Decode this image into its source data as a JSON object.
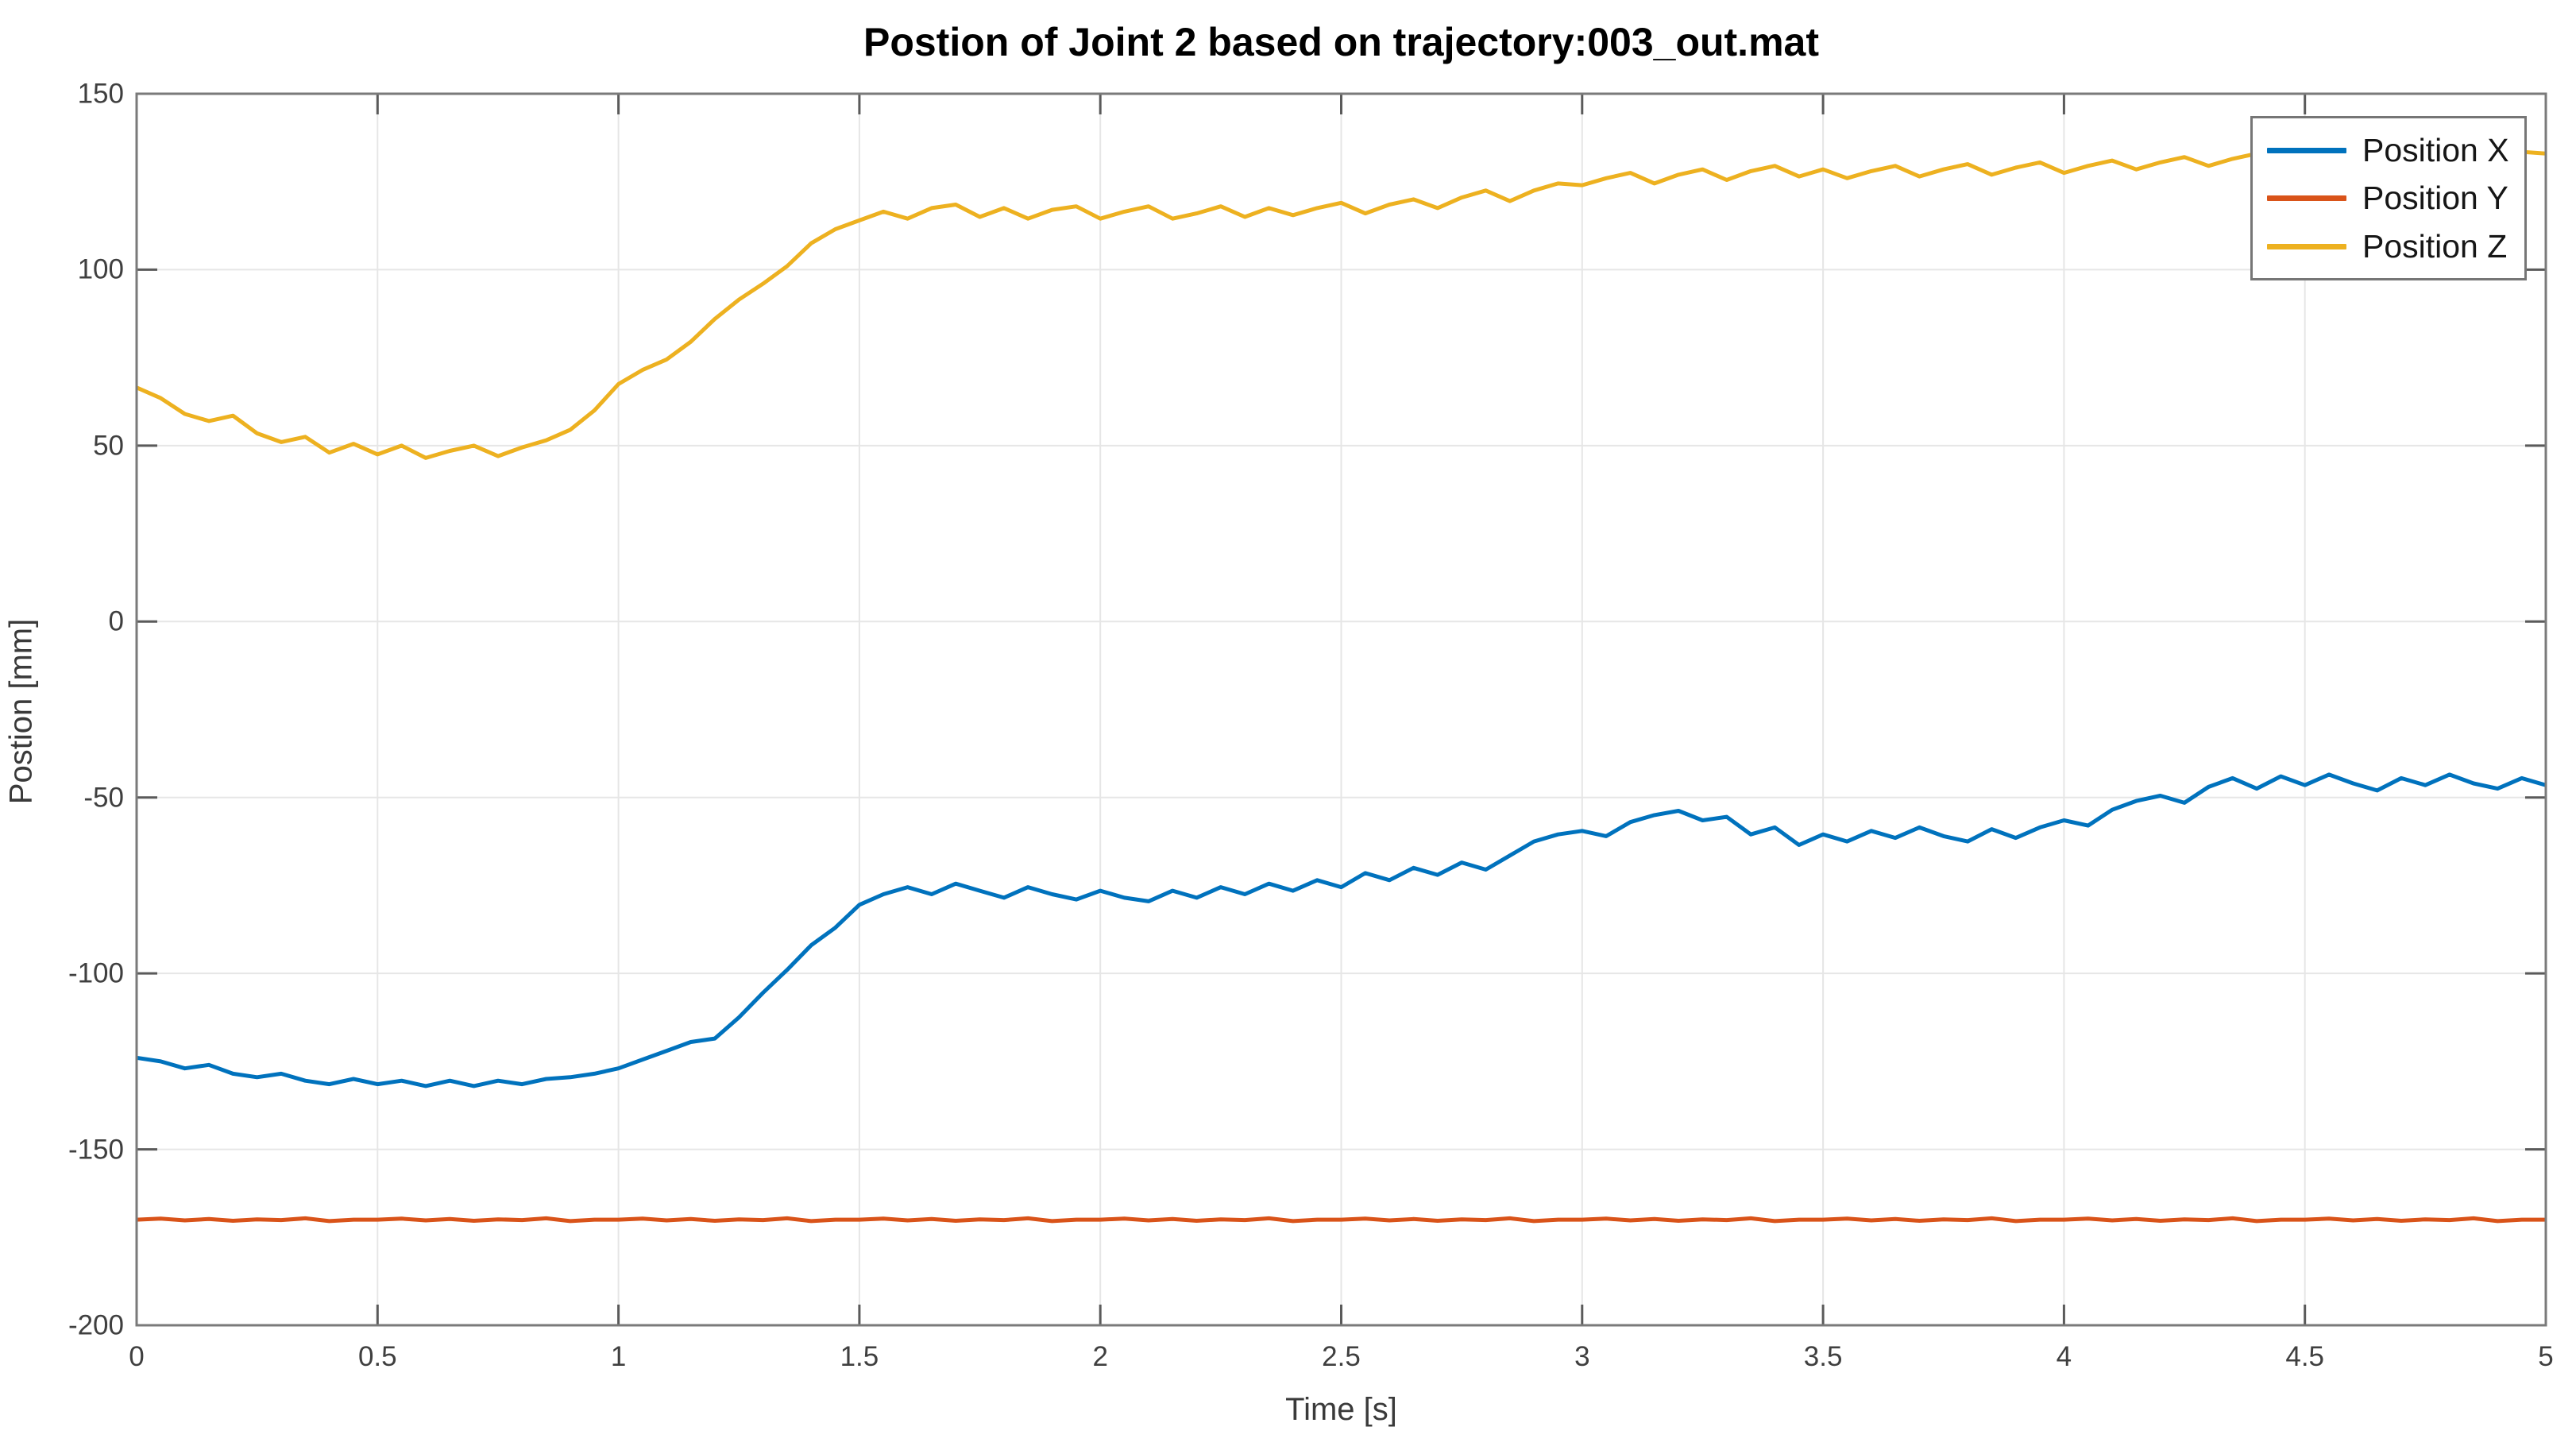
{
  "figure": {
    "kind": "matlab-line-figure"
  },
  "chart_data": {
    "type": "line",
    "title": "Postion of Joint 2 based on trajectory:003_out.mat",
    "xlabel": "Time [s]",
    "ylabel": "Postion [mm]",
    "xlim": [
      0,
      5
    ],
    "ylim": [
      -200,
      150
    ],
    "grid": true,
    "legend_position": "top-right",
    "x_tick_labels": [
      "0",
      "0.5",
      "1",
      "1.5",
      "2",
      "2.5",
      "3",
      "3.5",
      "4",
      "4.5",
      "5"
    ],
    "x_tick_values": [
      0,
      0.5,
      1,
      1.5,
      2,
      2.5,
      3,
      3.5,
      4,
      4.5,
      5
    ],
    "y_tick_labels": [
      "150",
      "100",
      "50",
      "0",
      "-50",
      "-100",
      "-150",
      "-200"
    ],
    "y_tick_values": [
      150,
      100,
      50,
      0,
      -50,
      -100,
      -150,
      -200
    ],
    "x": [
      0,
      0.05,
      0.1,
      0.15,
      0.2,
      0.25,
      0.3,
      0.35,
      0.4,
      0.45,
      0.5,
      0.55,
      0.6,
      0.65,
      0.7,
      0.75,
      0.8,
      0.85,
      0.9,
      0.95,
      1,
      1.05,
      1.1,
      1.15,
      1.2,
      1.25,
      1.3,
      1.35,
      1.4,
      1.45,
      1.5,
      1.55,
      1.6,
      1.65,
      1.7,
      1.75,
      1.8,
      1.85,
      1.9,
      1.95,
      2,
      2.05,
      2.1,
      2.15,
      2.2,
      2.25,
      2.3,
      2.35,
      2.4,
      2.45,
      2.5,
      2.55,
      2.6,
      2.65,
      2.7,
      2.75,
      2.8,
      2.85,
      2.9,
      2.95,
      3,
      3.05,
      3.1,
      3.15,
      3.2,
      3.25,
      3.3,
      3.35,
      3.4,
      3.45,
      3.5,
      3.55,
      3.6,
      3.65,
      3.7,
      3.75,
      3.8,
      3.85,
      3.9,
      3.95,
      4,
      4.05,
      4.1,
      4.15,
      4.2,
      4.25,
      4.3,
      4.35,
      4.4,
      4.45,
      4.5,
      4.55,
      4.6,
      4.65,
      4.7,
      4.75,
      4.8,
      4.85,
      4.9,
      4.95,
      5
    ],
    "series": [
      {
        "name": "Position X",
        "color": "#0072BD",
        "values": [
          -124,
          -125,
          -127,
          -126,
          -128.5,
          -129.5,
          -128.5,
          -130.5,
          -131.5,
          -130,
          -131.5,
          -130.5,
          -132,
          -130.5,
          -132,
          -130.5,
          -131.5,
          -130,
          -129.5,
          -128.5,
          -127,
          -124.5,
          -122,
          -119.5,
          -118.5,
          -112.5,
          -105.5,
          -99,
          -92,
          -87,
          -80.5,
          -77.5,
          -75.5,
          -77.5,
          -74.5,
          -76.5,
          -78.5,
          -75.5,
          -77.5,
          -79,
          -76.5,
          -78.5,
          -79.5,
          -76.5,
          -78.5,
          -75.5,
          -77.5,
          -74.5,
          -76.5,
          -73.5,
          -75.5,
          -71.5,
          -73.5,
          -70,
          -72,
          -68.5,
          -70.5,
          -66.5,
          -62.5,
          -60.5,
          -59.5,
          -61,
          -57,
          -55,
          -53.8,
          -56.5,
          -55.5,
          -60.5,
          -58.5,
          -63.5,
          -60.5,
          -62.5,
          -59.5,
          -61.5,
          -58.5,
          -61,
          -62.5,
          -59,
          -61.5,
          -58.5,
          -56.5,
          -58,
          -53.5,
          -51,
          -49.5,
          -51.5,
          -47,
          -44.5,
          -47.5,
          -44,
          -46.5,
          -43.5,
          -46,
          -48,
          -44.5,
          -46.5,
          -43.5,
          -46,
          -47.5,
          -44.5,
          -46.5
        ]
      },
      {
        "name": "Position Y",
        "color": "#D95319",
        "values": [
          -170,
          -169.7,
          -170.2,
          -169.8,
          -170.3,
          -169.9,
          -170.1,
          -169.6,
          -170.4,
          -170,
          -170,
          -169.7,
          -170.2,
          -169.8,
          -170.3,
          -169.9,
          -170.1,
          -169.6,
          -170.4,
          -170,
          -170,
          -169.7,
          -170.2,
          -169.8,
          -170.3,
          -169.9,
          -170.1,
          -169.6,
          -170.4,
          -170,
          -170,
          -169.7,
          -170.2,
          -169.8,
          -170.3,
          -169.9,
          -170.1,
          -169.6,
          -170.4,
          -170,
          -170,
          -169.7,
          -170.2,
          -169.8,
          -170.3,
          -169.9,
          -170.1,
          -169.6,
          -170.4,
          -170,
          -170,
          -169.7,
          -170.2,
          -169.8,
          -170.3,
          -169.9,
          -170.1,
          -169.6,
          -170.4,
          -170,
          -170,
          -169.7,
          -170.2,
          -169.8,
          -170.3,
          -169.9,
          -170.1,
          -169.6,
          -170.4,
          -170,
          -170,
          -169.7,
          -170.2,
          -169.8,
          -170.3,
          -169.9,
          -170.1,
          -169.6,
          -170.4,
          -170,
          -170,
          -169.7,
          -170.2,
          -169.8,
          -170.3,
          -169.9,
          -170.1,
          -169.6,
          -170.4,
          -170,
          -170,
          -169.7,
          -170.2,
          -169.8,
          -170.3,
          -169.9,
          -170.1,
          -169.6,
          -170.4,
          -170,
          -170
        ]
      },
      {
        "name": "Position Z",
        "color": "#EDB120",
        "values": [
          66.5,
          63.5,
          59,
          57,
          58.5,
          53.5,
          51,
          52.5,
          48,
          50.5,
          47.5,
          50,
          46.5,
          48.5,
          50,
          47,
          49.5,
          51.5,
          54.5,
          60,
          67.5,
          71.5,
          74.5,
          79.5,
          86,
          91.5,
          96,
          101,
          107.5,
          111.5,
          114,
          116.5,
          114.5,
          117.5,
          118.5,
          115,
          117.5,
          114.5,
          117,
          118,
          114.5,
          116.5,
          118,
          114.5,
          116,
          118,
          115,
          117.5,
          115.5,
          117.5,
          119,
          116,
          118.5,
          120,
          117.5,
          120.5,
          122.5,
          119.5,
          122.5,
          124.5,
          124,
          126,
          127.5,
          124.5,
          127,
          128.5,
          125.5,
          128,
          129.5,
          126.5,
          128.5,
          126,
          128,
          129.5,
          126.5,
          128.5,
          130,
          127,
          129,
          130.5,
          127.5,
          129.5,
          131,
          128.5,
          130.5,
          132,
          129.5,
          131.5,
          133,
          130.5,
          132.5,
          133.5,
          131,
          133,
          134,
          131.5,
          133.5,
          134.5,
          132,
          133.5,
          133
        ]
      }
    ]
  },
  "style": {
    "grid_color": "#e6e6e6",
    "box_color": "#7a7a7a",
    "tick_color": "#5a5a5a",
    "line_width": 5
  }
}
